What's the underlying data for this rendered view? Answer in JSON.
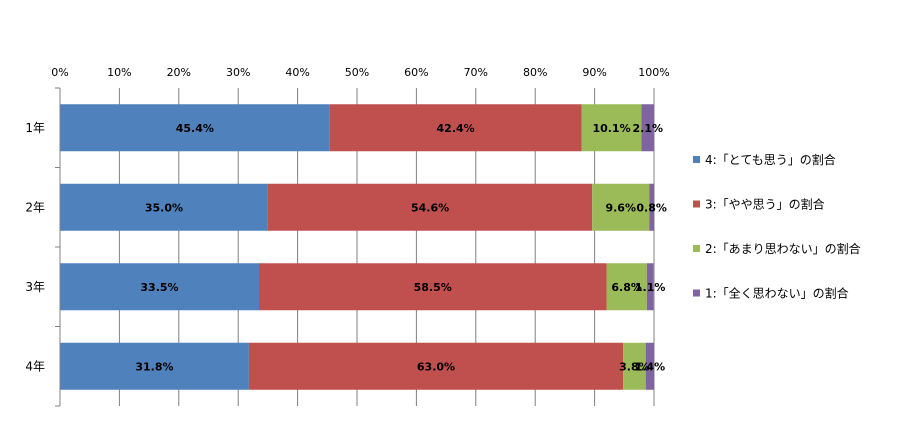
{
  "chart_data": {
    "type": "bar",
    "orientation": "horizontal",
    "stacked": "percent",
    "categories": [
      "1年",
      "2年",
      "3年",
      "4年"
    ],
    "xlim": [
      0,
      100
    ],
    "x_ticks": [
      "0%",
      "10%",
      "20%",
      "30%",
      "40%",
      "50%",
      "60%",
      "70%",
      "80%",
      "90%",
      "100%"
    ],
    "grid": true,
    "legend_position": "right",
    "series": [
      {
        "name": "4:「とても思う」の割合",
        "color": "#4F81BD",
        "values": [
          45.4,
          35.0,
          33.5,
          31.8
        ],
        "labels": [
          "45.4%",
          "35.0%",
          "33.5%",
          "31.8%"
        ]
      },
      {
        "name": "3:「やや思う」の割合",
        "color": "#C0504D",
        "values": [
          42.4,
          54.6,
          58.5,
          63.0
        ],
        "labels": [
          "42.4%",
          "54.6%",
          "58.5%",
          "63.0%"
        ]
      },
      {
        "name": "2:「あまり思わない」の割合",
        "color": "#9BBB59",
        "values": [
          10.1,
          9.6,
          6.8,
          3.8
        ],
        "labels": [
          "10.1%",
          "9.6%",
          "6.8%",
          "3.8%"
        ]
      },
      {
        "name": "1:「全く思わない」の割合",
        "color": "#8064A2",
        "values": [
          2.1,
          0.8,
          1.1,
          1.4
        ],
        "labels": [
          "2.1%",
          "0.8%",
          "1.1%",
          "1.4%"
        ]
      }
    ]
  }
}
